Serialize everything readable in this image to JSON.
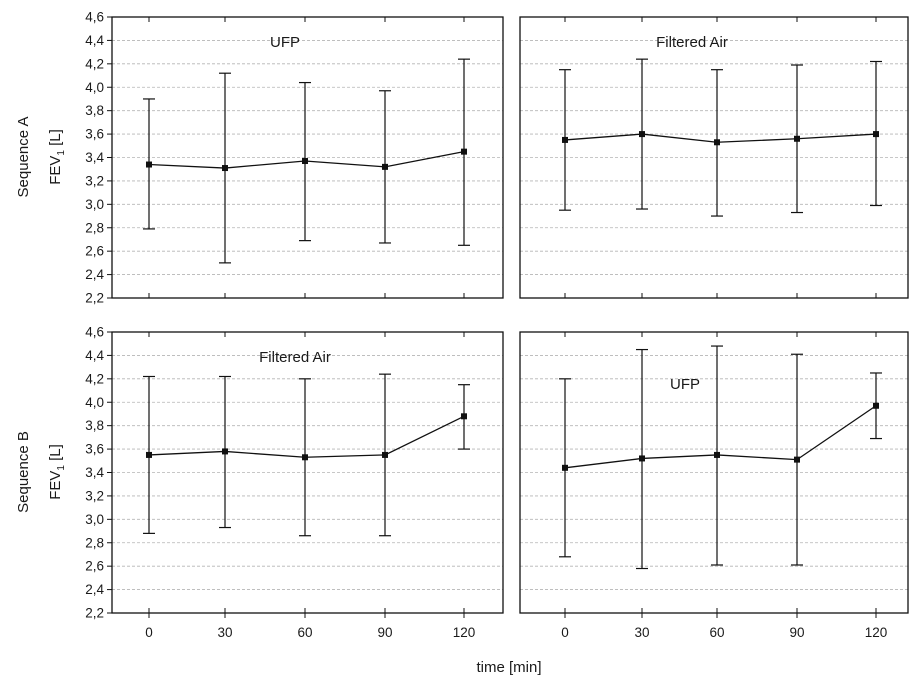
{
  "row_labels": [
    "Sequence A",
    "Sequence B"
  ],
  "ylabel_main": "FEV",
  "ylabel_sub": "1",
  "ylabel_unit": "[L]",
  "xlabel": "time [min]",
  "y_ticks": [
    "2,2",
    "2,4",
    "2,6",
    "2,8",
    "3,0",
    "3,2",
    "3,4",
    "3,6",
    "3,8",
    "4,0",
    "4,2",
    "4,4",
    "4,6"
  ],
  "x_ticks": [
    "0",
    "30",
    "60",
    "90",
    "120"
  ],
  "chart_data": [
    {
      "type": "line",
      "panel": "Sequence A",
      "title": "UFP",
      "x": [
        0,
        30,
        60,
        90,
        120
      ],
      "mean": [
        3.34,
        3.31,
        3.37,
        3.32,
        3.45
      ],
      "lower": [
        2.79,
        2.5,
        2.69,
        2.67,
        2.65
      ],
      "upper": [
        3.9,
        4.12,
        4.04,
        3.97,
        4.24
      ],
      "ylim": [
        2.2,
        4.6
      ],
      "grid": true
    },
    {
      "type": "line",
      "panel": "Sequence A",
      "title": "Filtered Air",
      "x": [
        0,
        30,
        60,
        90,
        120
      ],
      "mean": [
        3.55,
        3.6,
        3.53,
        3.56,
        3.6
      ],
      "lower": [
        2.95,
        2.96,
        2.9,
        2.93,
        2.99
      ],
      "upper": [
        4.15,
        4.24,
        4.15,
        4.19,
        4.22
      ],
      "ylim": [
        2.2,
        4.6
      ],
      "grid": true
    },
    {
      "type": "line",
      "panel": "Sequence B",
      "title": "Filtered Air",
      "x": [
        0,
        30,
        60,
        90,
        120
      ],
      "mean": [
        3.55,
        3.58,
        3.53,
        3.55,
        3.88
      ],
      "lower": [
        2.88,
        2.93,
        2.86,
        2.86,
        3.6
      ],
      "upper": [
        4.22,
        4.22,
        4.2,
        4.24,
        4.15
      ],
      "ylim": [
        2.2,
        4.6
      ],
      "grid": true
    },
    {
      "type": "line",
      "panel": "Sequence B",
      "title": "UFP",
      "x": [
        0,
        30,
        60,
        90,
        120
      ],
      "mean": [
        3.44,
        3.52,
        3.55,
        3.51,
        3.97
      ],
      "lower": [
        2.68,
        2.58,
        2.61,
        2.61,
        3.69
      ],
      "upper": [
        4.2,
        4.45,
        4.48,
        4.41,
        4.25
      ],
      "ylim": [
        2.2,
        4.6
      ],
      "grid": true
    }
  ]
}
